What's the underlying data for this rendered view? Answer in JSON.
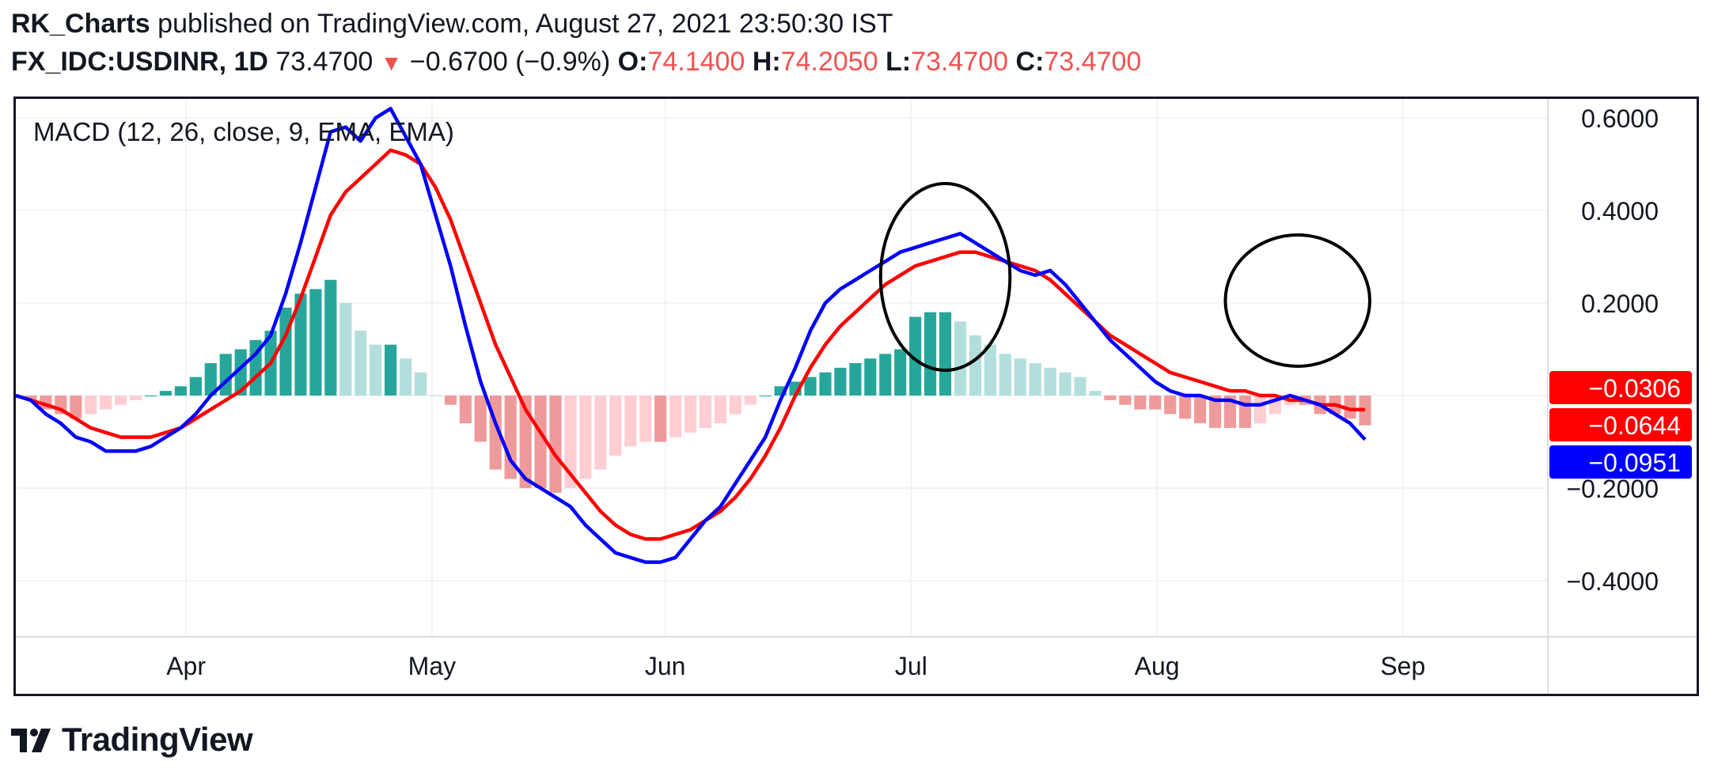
{
  "header": {
    "author": "RK_Charts",
    "published_text": "published on TradingView.com, August 27, 2021 23:50:30 IST",
    "symbol": "FX_IDC:USDINR, 1D",
    "last": "73.4700",
    "change_arrow": "▼",
    "change": "−0.6700 (−0.9%)",
    "o_label": "O:",
    "o_value": "74.1400",
    "h_label": "H:",
    "h_value": "74.2050",
    "l_label": "L:",
    "l_value": "73.4700",
    "c_label": "C:",
    "c_value": "73.4700"
  },
  "logo": {
    "icon": "tradingview-logo-icon",
    "text": "TradingView"
  },
  "colors": {
    "macd": "#0000ff",
    "signal": "#ff0000",
    "hist_pos_strong": "#26a69a",
    "hist_pos_weak": "#b2dfdb",
    "hist_neg_strong": "#ef9a9a",
    "hist_neg_weak": "#ffcdd2",
    "annotation": "#000000"
  },
  "chart_data": {
    "type": "line",
    "title": "MACD (12, 26, close, 9, EMA, EMA)",
    "xlabel": "",
    "ylabel": "",
    "x_ticks": [
      "Apr",
      "May",
      "Jun",
      "Jul",
      "Aug",
      "Sep"
    ],
    "y_ticks": [
      "0.6000",
      "0.4000",
      "0.2000",
      "−0.2000",
      "−0.4000"
    ],
    "ylim": [
      -0.52,
      0.64
    ],
    "grid": true,
    "series": [
      {
        "name": "MACD",
        "color": "#0000ff",
        "values": [
          0.0,
          -0.01,
          -0.04,
          -0.06,
          -0.09,
          -0.1,
          -0.12,
          -0.12,
          -0.12,
          -0.11,
          -0.09,
          -0.07,
          -0.04,
          0.0,
          0.03,
          0.06,
          0.09,
          0.13,
          0.22,
          0.33,
          0.45,
          0.57,
          0.58,
          0.55,
          0.6,
          0.62,
          0.56,
          0.5,
          0.39,
          0.28,
          0.15,
          0.03,
          -0.06,
          -0.14,
          -0.18,
          -0.2,
          -0.22,
          -0.24,
          -0.28,
          -0.31,
          -0.34,
          -0.35,
          -0.36,
          -0.36,
          -0.35,
          -0.31,
          -0.27,
          -0.24,
          -0.19,
          -0.14,
          -0.09,
          -0.01,
          0.06,
          0.14,
          0.2,
          0.23,
          0.25,
          0.27,
          0.29,
          0.31,
          0.32,
          0.33,
          0.34,
          0.35,
          0.33,
          0.31,
          0.29,
          0.27,
          0.26,
          0.27,
          0.24,
          0.2,
          0.16,
          0.12,
          0.09,
          0.06,
          0.03,
          0.01,
          0.0,
          0.0,
          -0.01,
          -0.01,
          -0.02,
          -0.02,
          -0.01,
          0.0,
          -0.01,
          -0.02,
          -0.04,
          -0.06,
          -0.0951
        ]
      },
      {
        "name": "Signal",
        "color": "#ff0000",
        "values": [
          0.0,
          -0.01,
          -0.02,
          -0.03,
          -0.05,
          -0.07,
          -0.08,
          -0.09,
          -0.09,
          -0.09,
          -0.08,
          -0.07,
          -0.05,
          -0.03,
          -0.01,
          0.01,
          0.04,
          0.07,
          0.13,
          0.21,
          0.3,
          0.39,
          0.44,
          0.47,
          0.5,
          0.53,
          0.52,
          0.5,
          0.45,
          0.38,
          0.29,
          0.2,
          0.11,
          0.04,
          -0.03,
          -0.08,
          -0.13,
          -0.17,
          -0.21,
          -0.25,
          -0.28,
          -0.3,
          -0.31,
          -0.31,
          -0.3,
          -0.29,
          -0.27,
          -0.25,
          -0.22,
          -0.18,
          -0.13,
          -0.07,
          0.0,
          0.06,
          0.11,
          0.15,
          0.18,
          0.21,
          0.24,
          0.26,
          0.28,
          0.29,
          0.3,
          0.31,
          0.31,
          0.3,
          0.29,
          0.28,
          0.27,
          0.25,
          0.22,
          0.19,
          0.16,
          0.13,
          0.11,
          0.09,
          0.07,
          0.05,
          0.04,
          0.03,
          0.02,
          0.01,
          0.01,
          0.0,
          0.0,
          -0.01,
          -0.01,
          -0.02,
          -0.02,
          -0.03,
          -0.0306
        ]
      },
      {
        "name": "Histogram",
        "color": "#26a69a",
        "values": [
          0.0,
          -0.01,
          -0.03,
          -0.04,
          -0.05,
          -0.04,
          -0.03,
          -0.02,
          -0.01,
          0.0,
          0.01,
          0.02,
          0.04,
          0.07,
          0.09,
          0.1,
          0.12,
          0.14,
          0.19,
          0.22,
          0.23,
          0.25,
          0.2,
          0.14,
          0.11,
          0.11,
          0.08,
          0.05,
          0.0,
          -0.02,
          -0.06,
          -0.1,
          -0.16,
          -0.18,
          -0.2,
          -0.2,
          -0.21,
          -0.2,
          -0.18,
          -0.16,
          -0.13,
          -0.11,
          -0.1,
          -0.1,
          -0.09,
          -0.08,
          -0.07,
          -0.06,
          -0.04,
          -0.02,
          0.0,
          0.02,
          0.03,
          0.04,
          0.05,
          0.06,
          0.07,
          0.08,
          0.09,
          0.1,
          0.17,
          0.18,
          0.18,
          0.16,
          0.13,
          0.11,
          0.09,
          0.08,
          0.07,
          0.06,
          0.05,
          0.04,
          0.01,
          -0.01,
          -0.02,
          -0.03,
          -0.03,
          -0.04,
          -0.05,
          -0.06,
          -0.07,
          -0.07,
          -0.07,
          -0.06,
          -0.04,
          -0.02,
          -0.02,
          -0.04,
          -0.04,
          -0.05,
          -0.0644
        ]
      }
    ],
    "value_labels": [
      {
        "series": "Signal",
        "text": "−0.0306",
        "color": "#ff0000",
        "value": -0.0306
      },
      {
        "series": "Histogram",
        "text": "−0.0644",
        "color": "#ff0000",
        "value": -0.0644
      },
      {
        "series": "MACD",
        "text": "−0.0951",
        "color": "#0000ff",
        "value": -0.0951
      }
    ],
    "annotations": [
      {
        "shape": "ellipse",
        "color": "#000000",
        "note_index_range": [
          58,
          66
        ]
      },
      {
        "shape": "ellipse",
        "color": "#000000",
        "note_index_range": [
          81,
          90
        ]
      }
    ]
  }
}
